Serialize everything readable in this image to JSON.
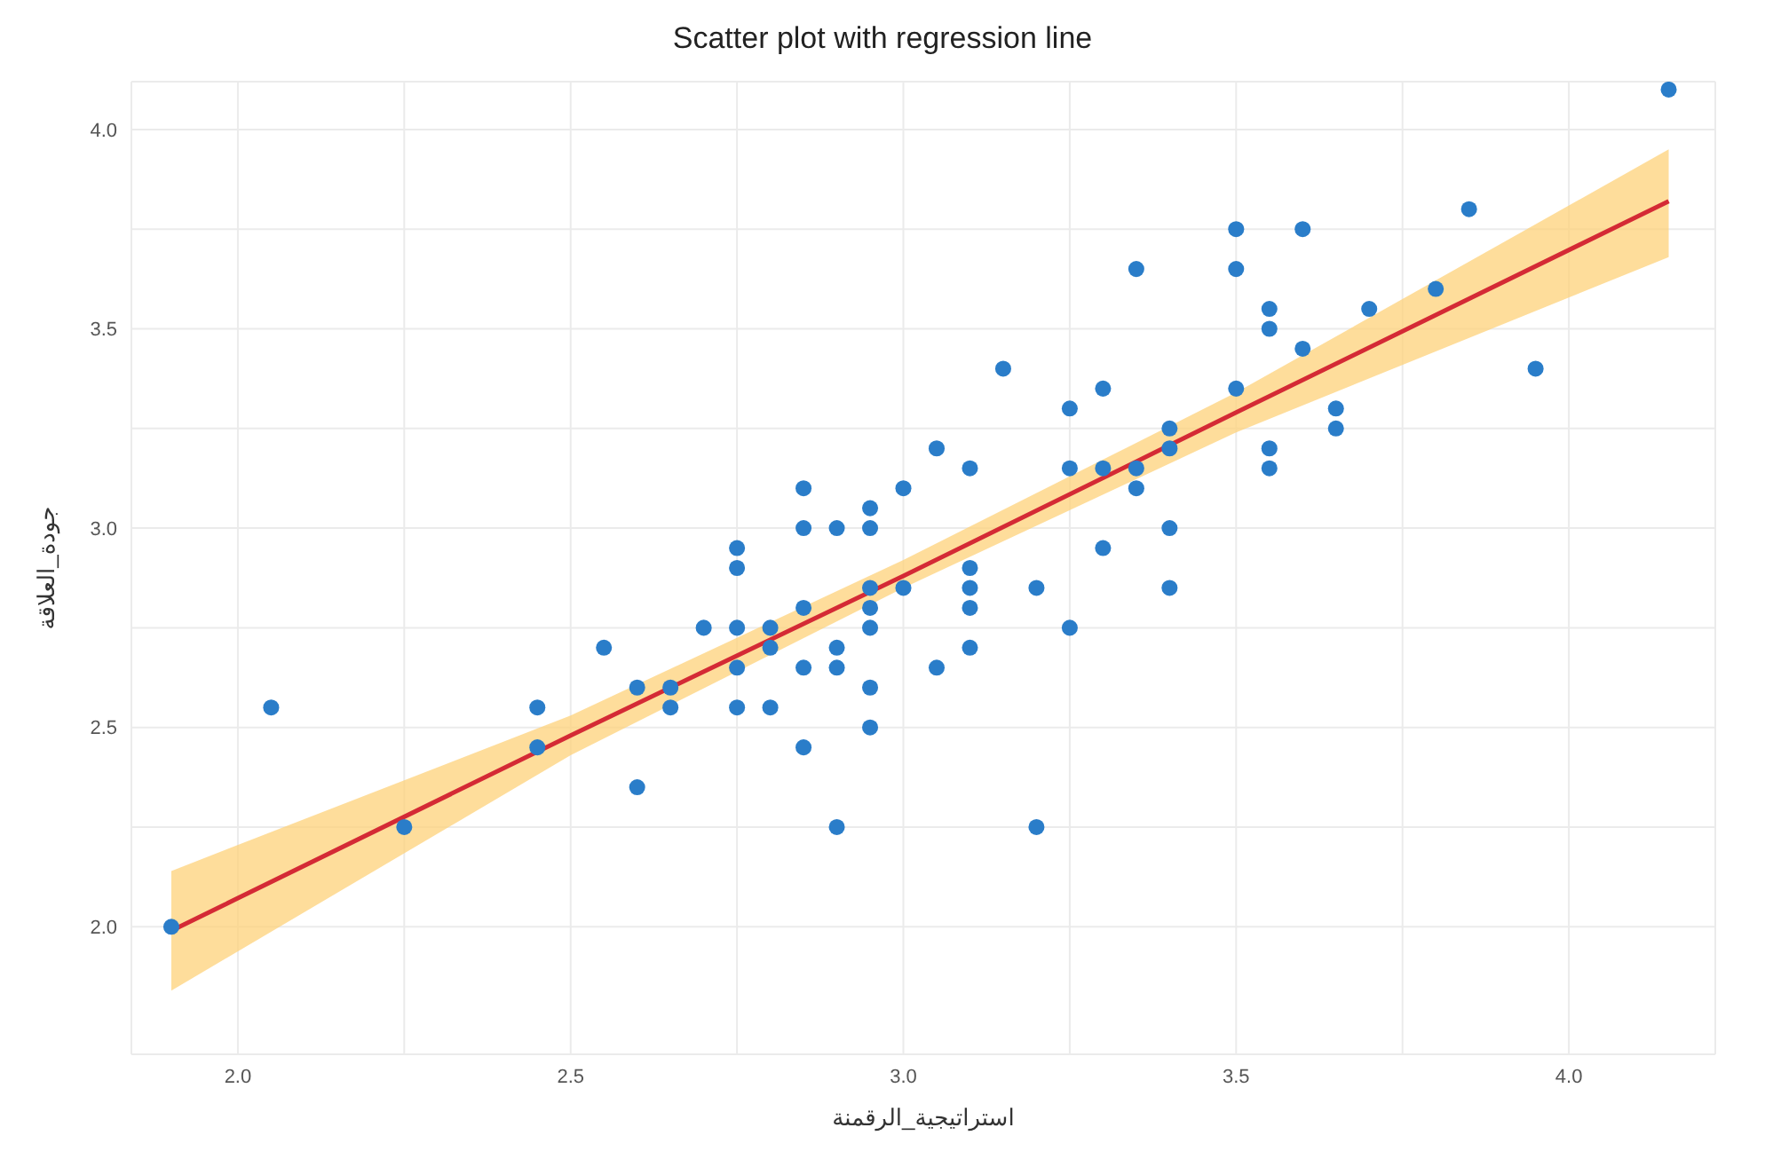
{
  "chart_data": {
    "type": "scatter",
    "title": "Scatter plot with regression line",
    "xlabel": "استراتيجية_الرقمنة",
    "ylabel": "جودة_العلاقة",
    "xlim": [
      1.84,
      4.22
    ],
    "ylim": [
      1.68,
      4.12
    ],
    "xticks": [
      {
        "value": 2,
        "label": "2.0"
      },
      {
        "value": 2.25,
        "label": null
      },
      2.5,
      {
        "value": 2.75,
        "label": null
      },
      {
        "value": 3,
        "label": "3.0"
      },
      {
        "value": 3.25,
        "label": null
      },
      3.5,
      {
        "value": 3.75,
        "label": null
      },
      {
        "value": 4,
        "label": "4.0"
      }
    ],
    "yticks": [
      {
        "value": 2,
        "label": "2.0"
      },
      {
        "value": 2.25,
        "label": null
      },
      2.5,
      {
        "value": 2.75,
        "label": null
      },
      {
        "value": 3,
        "label": "3.0"
      },
      {
        "value": 3.25,
        "label": null
      },
      3.5,
      {
        "value": 3.75,
        "label": null
      },
      {
        "value": 4,
        "label": "4.0"
      }
    ],
    "grid": true,
    "series": [
      {
        "marker": "circle",
        "color": "#2a7dc9",
        "x": [
          1.9,
          2.05,
          2.25,
          2.45,
          2.45,
          2.55,
          2.6,
          2.6,
          2.65,
          2.65,
          2.7,
          2.75,
          2.75,
          2.75,
          2.75,
          2.75,
          2.8,
          2.8,
          2.8,
          2.85,
          2.85,
          2.85,
          2.85,
          2.85,
          2.9,
          2.9,
          2.9,
          2.9,
          2.95,
          2.95,
          2.95,
          2.95,
          2.95,
          2.95,
          2.95,
          3.0,
          3.0,
          3.05,
          3.05,
          3.1,
          3.1,
          3.1,
          3.1,
          3.1,
          3.15,
          3.2,
          3.2,
          3.25,
          3.25,
          3.25,
          3.3,
          3.3,
          3.3,
          3.35,
          3.35,
          3.35,
          3.4,
          3.4,
          3.4,
          3.4,
          3.5,
          3.5,
          3.5,
          3.55,
          3.55,
          3.55,
          3.55,
          3.6,
          3.6,
          3.65,
          3.65,
          3.7,
          3.8,
          3.85,
          3.95,
          4.15
        ],
        "values": [
          2.0,
          2.55,
          2.25,
          2.55,
          2.45,
          2.7,
          2.6,
          2.35,
          2.55,
          2.6,
          2.75,
          2.95,
          2.9,
          2.75,
          2.65,
          2.55,
          2.75,
          2.7,
          2.55,
          3.1,
          3.0,
          2.8,
          2.65,
          2.45,
          3.0,
          2.7,
          2.65,
          2.25,
          3.05,
          3.0,
          2.85,
          2.8,
          2.75,
          2.6,
          2.5,
          3.1,
          2.85,
          3.2,
          2.65,
          3.15,
          2.9,
          2.85,
          2.8,
          2.7,
          3.4,
          2.85,
          2.25,
          3.3,
          3.15,
          2.75,
          3.35,
          3.15,
          2.95,
          3.65,
          3.15,
          3.1,
          3.25,
          3.2,
          3.0,
          2.85,
          3.75,
          3.65,
          3.35,
          3.55,
          3.5,
          3.2,
          3.15,
          3.75,
          3.45,
          3.3,
          3.25,
          3.55,
          3.6,
          3.8,
          3.4,
          4.1
        ]
      },
      {
        "type": "line",
        "color": "#d42a35",
        "x": [
          1.9,
          2.5,
          3.0,
          3.5,
          4.15
        ],
        "values": [
          1.99,
          2.48,
          2.88,
          3.29,
          3.82
        ],
        "lower": [
          1.84,
          2.43,
          2.85,
          3.24,
          3.68
        ],
        "upper": [
          2.14,
          2.53,
          2.92,
          3.34,
          3.95
        ]
      }
    ]
  }
}
